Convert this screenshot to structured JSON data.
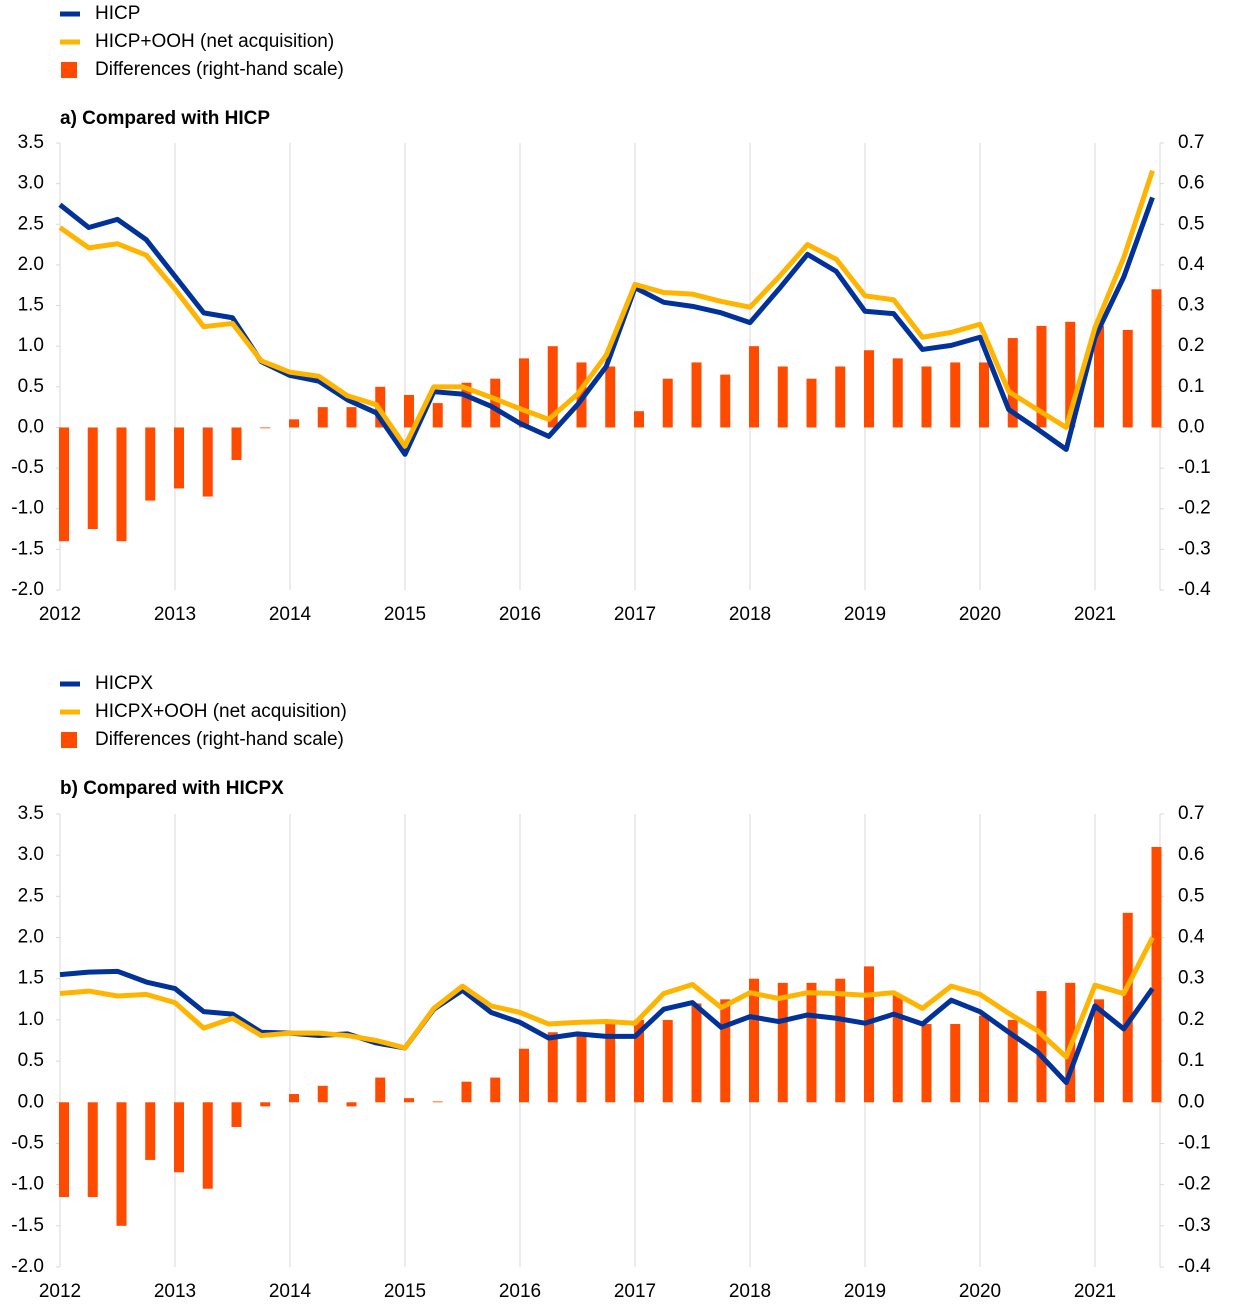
{
  "chart_data": [
    {
      "type": "combo",
      "title": "a) Compared with HICP",
      "categories": [
        "2012",
        null,
        null,
        null,
        "2013",
        null,
        null,
        null,
        "2014",
        null,
        null,
        null,
        "2015",
        null,
        null,
        null,
        "2016",
        null,
        null,
        null,
        "2017",
        null,
        null,
        null,
        "2018",
        null,
        null,
        null,
        "2019",
        null,
        null,
        null,
        "2020",
        null,
        null,
        null,
        "2021",
        null,
        null
      ],
      "series": [
        {
          "name": "HICP",
          "type": "line",
          "color": "#003299",
          "values": [
            2.74,
            2.46,
            2.56,
            2.31,
            1.86,
            1.41,
            1.35,
            0.81,
            0.64,
            0.57,
            0.34,
            0.18,
            -0.33,
            0.44,
            0.41,
            0.26,
            0.05,
            -0.11,
            0.28,
            0.75,
            1.72,
            1.54,
            1.49,
            1.41,
            1.29,
            1.7,
            2.13,
            1.92,
            1.43,
            1.4,
            0.96,
            1.01,
            1.11,
            0.22,
            -0.02,
            -0.27,
            1.11,
            1.85,
            2.83
          ]
        },
        {
          "name": "HICP+OOH (net acquisition)",
          "type": "line",
          "color": "#ffb400",
          "values": [
            2.46,
            2.21,
            2.26,
            2.12,
            1.7,
            1.24,
            1.28,
            0.82,
            0.68,
            0.63,
            0.39,
            0.28,
            -0.23,
            0.5,
            0.5,
            0.37,
            0.23,
            0.1,
            0.41,
            0.89,
            1.76,
            1.66,
            1.64,
            1.55,
            1.48,
            1.85,
            2.25,
            2.07,
            1.62,
            1.57,
            1.11,
            1.17,
            1.27,
            0.44,
            0.22,
            0.0,
            1.23,
            2.09,
            3.16
          ]
        },
        {
          "name": "Differences (right-hand scale)",
          "type": "bar",
          "axis": "y2",
          "color": "#ff4b00",
          "values": [
            -0.28,
            -0.25,
            -0.28,
            -0.18,
            -0.15,
            -0.17,
            -0.08,
            -0.002,
            0.02,
            0.05,
            0.05,
            0.1,
            0.08,
            0.06,
            0.11,
            0.12,
            0.17,
            0.2,
            0.16,
            0.15,
            0.04,
            0.12,
            0.16,
            0.13,
            0.2,
            0.15,
            0.12,
            0.15,
            0.19,
            0.17,
            0.15,
            0.16,
            0.16,
            0.22,
            0.25,
            0.26,
            0.25,
            0.24,
            0.34
          ]
        }
      ],
      "ylim": [
        -2,
        3.5
      ],
      "yticks": [
        3.5,
        {
          "value": 3,
          "label": "3.0"
        },
        2.5,
        {
          "value": 2,
          "label": "2.0"
        },
        1.5,
        {
          "value": 1,
          "label": "1.0"
        },
        0.5,
        {
          "value": 0,
          "label": "0.0"
        },
        -0.5,
        {
          "value": -1,
          "label": "-1.0"
        },
        -1.5,
        {
          "value": -2,
          "label": "-2.0"
        }
      ],
      "y2lim": [
        -0.4,
        0.7
      ],
      "y2ticks": [
        0.7,
        0.6,
        0.5,
        0.4,
        0.3,
        0.2,
        0.1,
        {
          "value": 0,
          "label": "0.0"
        },
        -0.1,
        -0.2,
        -0.3,
        -0.4
      ],
      "grid": "x",
      "legend": "top-left"
    },
    {
      "type": "combo",
      "title": "b) Compared with HICPX",
      "categories": [
        "2012",
        null,
        null,
        null,
        "2013",
        null,
        null,
        null,
        "2014",
        null,
        null,
        null,
        "2015",
        null,
        null,
        null,
        "2016",
        null,
        null,
        null,
        "2017",
        null,
        null,
        null,
        "2018",
        null,
        null,
        null,
        "2019",
        null,
        null,
        null,
        "2020",
        null,
        null,
        null,
        "2021",
        null,
        null
      ],
      "series": [
        {
          "name": "HICPX",
          "type": "line",
          "color": "#003299",
          "values": [
            1.55,
            1.58,
            1.59,
            1.46,
            1.38,
            1.1,
            1.07,
            0.85,
            0.84,
            0.81,
            0.83,
            0.72,
            0.66,
            1.13,
            1.36,
            1.09,
            0.97,
            0.78,
            0.83,
            0.8,
            0.8,
            1.13,
            1.21,
            0.91,
            1.04,
            0.98,
            1.06,
            1.02,
            0.96,
            1.07,
            0.95,
            1.24,
            1.1,
            0.85,
            0.61,
            0.24,
            1.17,
            0.89,
            1.38
          ]
        },
        {
          "name": "HICPX+OOH (net acquisition)",
          "type": "line",
          "color": "#ffb400",
          "values": [
            1.32,
            1.35,
            1.29,
            1.31,
            1.21,
            0.9,
            1.02,
            0.81,
            0.84,
            0.84,
            0.81,
            0.75,
            0.66,
            1.14,
            1.41,
            1.17,
            1.09,
            0.95,
            0.97,
            0.98,
            0.96,
            1.32,
            1.43,
            1.15,
            1.33,
            1.26,
            1.33,
            1.32,
            1.3,
            1.33,
            1.14,
            1.41,
            1.31,
            1.08,
            0.87,
            0.55,
            1.42,
            1.32,
            2.0
          ]
        },
        {
          "name": "Differences (right-hand scale)",
          "type": "bar",
          "axis": "y2",
          "color": "#ff4b00",
          "values": [
            -0.23,
            -0.23,
            -0.3,
            -0.14,
            -0.17,
            -0.21,
            -0.06,
            -0.01,
            0.02,
            0.04,
            -0.01,
            0.06,
            0.01,
            0.002,
            0.05,
            0.06,
            0.13,
            0.17,
            0.16,
            0.2,
            0.2,
            0.2,
            0.24,
            0.25,
            0.3,
            0.29,
            0.29,
            0.3,
            0.33,
            0.26,
            0.19,
            0.19,
            0.21,
            0.2,
            0.27,
            0.29,
            0.25,
            0.46,
            0.62
          ]
        }
      ],
      "ylim": [
        -2,
        3.5
      ],
      "yticks": [
        3.5,
        {
          "value": 3,
          "label": "3.0"
        },
        2.5,
        {
          "value": 2,
          "label": "2.0"
        },
        1.5,
        {
          "value": 1,
          "label": "1.0"
        },
        0.5,
        {
          "value": 0,
          "label": "0.0"
        },
        -0.5,
        {
          "value": -1,
          "label": "-1.0"
        },
        -1.5,
        {
          "value": -2,
          "label": "-2.0"
        }
      ],
      "y2lim": [
        -0.4,
        0.7
      ],
      "y2ticks": [
        0.7,
        0.6,
        0.5,
        0.4,
        0.3,
        0.2,
        0.1,
        {
          "value": 0,
          "label": "0.0"
        },
        -0.1,
        -0.2,
        -0.3,
        -0.4
      ],
      "grid": "x",
      "legend": "top-left"
    }
  ]
}
